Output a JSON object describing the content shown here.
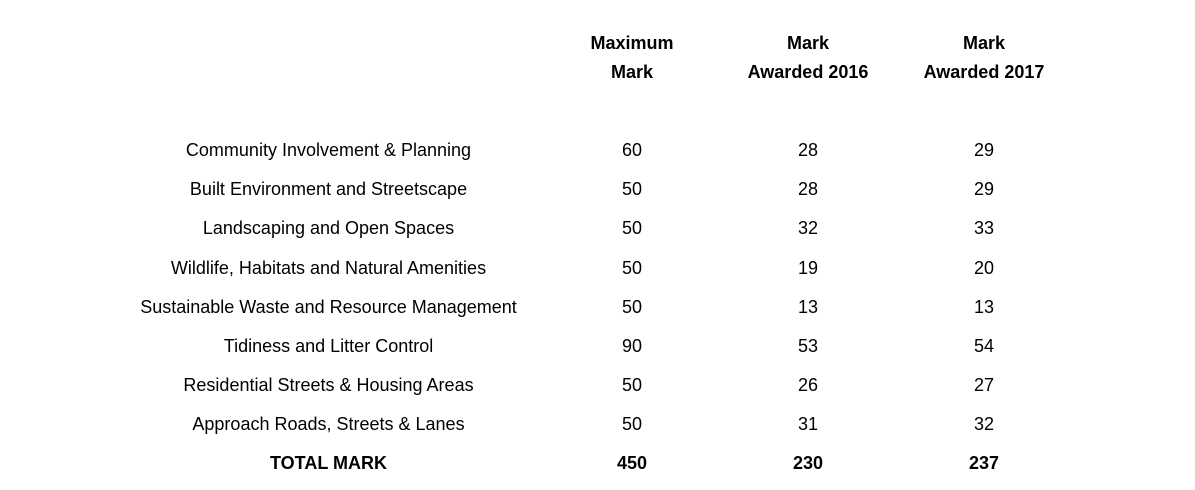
{
  "table": {
    "headers": {
      "category": "",
      "max": [
        "Maximum",
        "Mark"
      ],
      "y2016": [
        "Mark",
        "Awarded 2016"
      ],
      "y2017": [
        "Mark",
        "Awarded 2017"
      ]
    },
    "rows": [
      {
        "category": "Community Involvement & Planning",
        "max": "60",
        "y2016": "28",
        "y2017": "29"
      },
      {
        "category": "Built Environment and Streetscape",
        "max": "50",
        "y2016": "28",
        "y2017": "29"
      },
      {
        "category": "Landscaping and Open Spaces",
        "max": "50",
        "y2016": "32",
        "y2017": "33"
      },
      {
        "category": "Wildlife, Habitats and Natural Amenities",
        "max": "50",
        "y2016": "19",
        "y2017": "20"
      },
      {
        "category": "Sustainable Waste and Resource Management",
        "max": "50",
        "y2016": "13",
        "y2017": "13"
      },
      {
        "category": "Tidiness and Litter Control",
        "max": "90",
        "y2016": "53",
        "y2017": "54"
      },
      {
        "category": "Residential Streets & Housing Areas",
        "max": "50",
        "y2016": "26",
        "y2017": "27"
      },
      {
        "category": "Approach Roads, Streets & Lanes",
        "max": "50",
        "y2016": "31",
        "y2017": "32"
      }
    ],
    "total": {
      "category": "TOTAL MARK",
      "max": "450",
      "y2016": "230",
      "y2017": "237"
    }
  }
}
